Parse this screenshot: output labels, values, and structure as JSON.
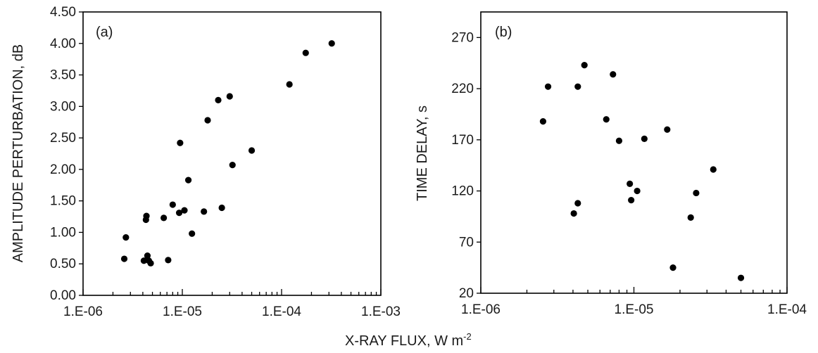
{
  "chart_data": [
    {
      "type": "scatter",
      "panel_label": "(a)",
      "xlabel": "",
      "ylabel": "AMPLITUDE PERTURBATION, dB",
      "xscale": "log",
      "xlim": [
        1e-06,
        0.001
      ],
      "ylim": [
        0,
        4.5
      ],
      "x_tick_labels": [
        "1.E-06",
        "1.E-05",
        "1.E-04",
        "1.E-03"
      ],
      "x_tick_values": [
        1e-06,
        1e-05,
        0.0001,
        0.001
      ],
      "y_tick_labels": [
        "0.00",
        "0.50",
        "1.00",
        "1.50",
        "2.00",
        "2.50",
        "3.00",
        "3.50",
        "4.00",
        "4.50"
      ],
      "y_tick_values": [
        0,
        0.5,
        1,
        1.5,
        2,
        2.5,
        3,
        3.5,
        4,
        4.5
      ],
      "grid": false,
      "points": [
        {
          "x": 2.6e-06,
          "y": 0.58
        },
        {
          "x": 2.7e-06,
          "y": 0.92
        },
        {
          "x": 4.1e-06,
          "y": 0.55
        },
        {
          "x": 4.3e-06,
          "y": 1.2
        },
        {
          "x": 4.35e-06,
          "y": 1.26
        },
        {
          "x": 4.45e-06,
          "y": 0.63
        },
        {
          "x": 4.6e-06,
          "y": 0.55
        },
        {
          "x": 4.8e-06,
          "y": 0.51
        },
        {
          "x": 6.5e-06,
          "y": 1.23
        },
        {
          "x": 7.2e-06,
          "y": 0.56
        },
        {
          "x": 8e-06,
          "y": 1.44
        },
        {
          "x": 9.3e-06,
          "y": 1.31
        },
        {
          "x": 9.5e-06,
          "y": 2.42
        },
        {
          "x": 1.05e-05,
          "y": 1.35
        },
        {
          "x": 1.15e-05,
          "y": 1.83
        },
        {
          "x": 1.25e-05,
          "y": 0.98
        },
        {
          "x": 1.65e-05,
          "y": 1.33
        },
        {
          "x": 1.8e-05,
          "y": 2.78
        },
        {
          "x": 2.3e-05,
          "y": 3.1
        },
        {
          "x": 2.5e-05,
          "y": 1.39
        },
        {
          "x": 3e-05,
          "y": 3.16
        },
        {
          "x": 3.2e-05,
          "y": 2.07
        },
        {
          "x": 5e-05,
          "y": 2.3
        },
        {
          "x": 0.00012,
          "y": 3.35
        },
        {
          "x": 0.000175,
          "y": 3.85
        },
        {
          "x": 0.00032,
          "y": 4.0
        }
      ]
    },
    {
      "type": "scatter",
      "panel_label": "(b)",
      "xlabel": "",
      "ylabel": "TIME DELAY, s",
      "xscale": "log",
      "xlim": [
        1e-06,
        0.0001
      ],
      "ylim": [
        20,
        295
      ],
      "x_tick_labels": [
        "1.E-06",
        "1.E-05",
        "1.E-04"
      ],
      "x_tick_values": [
        1e-06,
        1e-05,
        0.0001
      ],
      "y_tick_labels": [
        "20",
        "70",
        "120",
        "170",
        "220",
        "270"
      ],
      "y_tick_values": [
        20,
        70,
        120,
        170,
        220,
        270
      ],
      "grid": false,
      "points": [
        {
          "x": 2.55e-06,
          "y": 188
        },
        {
          "x": 2.75e-06,
          "y": 222
        },
        {
          "x": 4.05e-06,
          "y": 98
        },
        {
          "x": 4.3e-06,
          "y": 108
        },
        {
          "x": 4.3e-06,
          "y": 222
        },
        {
          "x": 4.75e-06,
          "y": 243
        },
        {
          "x": 6.6e-06,
          "y": 190
        },
        {
          "x": 7.3e-06,
          "y": 234
        },
        {
          "x": 8e-06,
          "y": 169
        },
        {
          "x": 9.4e-06,
          "y": 127
        },
        {
          "x": 9.6e-06,
          "y": 111
        },
        {
          "x": 1.05e-05,
          "y": 120
        },
        {
          "x": 1.17e-05,
          "y": 171
        },
        {
          "x": 1.65e-05,
          "y": 180
        },
        {
          "x": 1.8e-05,
          "y": 45
        },
        {
          "x": 2.35e-05,
          "y": 94
        },
        {
          "x": 2.55e-05,
          "y": 118
        },
        {
          "x": 3.3e-05,
          "y": 141
        },
        {
          "x": 5e-05,
          "y": 35
        }
      ]
    }
  ],
  "shared_xlabel": "X-RAY FLUX, W m",
  "shared_xlabel_superscript": "-2"
}
